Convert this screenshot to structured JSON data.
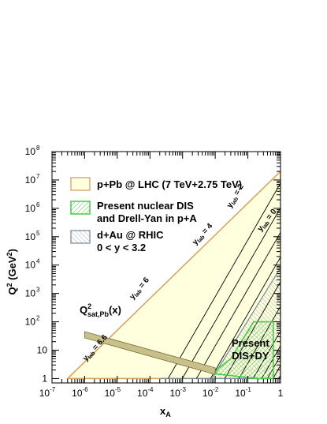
{
  "chart_data": {
    "type": "area",
    "xscale": "log",
    "yscale": "log",
    "xlim": [
      1e-07,
      1
    ],
    "ylim": [
      0.7,
      100000000.0
    ],
    "xlabel": {
      "main": "x",
      "sub": "A"
    },
    "ylabel": {
      "main": "Q",
      "sup": "2",
      "unit": " (GeV",
      "unitsup": "2",
      "close": ")"
    },
    "xticks": [
      {
        "value": 1e-07,
        "base": "10",
        "exp": "-7"
      },
      {
        "value": 1e-06,
        "base": "10",
        "exp": "-6"
      },
      {
        "value": 1e-05,
        "base": "10",
        "exp": "-5"
      },
      {
        "value": 0.0001,
        "base": "10",
        "exp": "-4"
      },
      {
        "value": 0.001,
        "base": "10",
        "exp": "-3"
      },
      {
        "value": 0.01,
        "base": "10",
        "exp": "-2"
      },
      {
        "value": 0.1,
        "base": "10",
        "exp": "-1"
      },
      {
        "value": 1,
        "base": "1",
        "exp": ""
      }
    ],
    "yticks": [
      {
        "value": 1,
        "base": "1",
        "exp": ""
      },
      {
        "value": 10,
        "base": "10",
        "exp": ""
      },
      {
        "value": 100,
        "base": "10",
        "exp": "2"
      },
      {
        "value": 1000,
        "base": "10",
        "exp": "3"
      },
      {
        "value": 10000.0,
        "base": "10",
        "exp": "4"
      },
      {
        "value": 100000.0,
        "base": "10",
        "exp": "5"
      },
      {
        "value": 1000000.0,
        "base": "10",
        "exp": "6"
      },
      {
        "value": 10000000.0,
        "base": "10",
        "exp": "7"
      },
      {
        "value": 100000000.0,
        "base": "10",
        "exp": "8"
      }
    ],
    "legend": {
      "placement": "top-left",
      "entries": [
        {
          "label": "p+Pb @ LHC (7 TeV+2.75 TeV)",
          "fill": "#ffffdd",
          "stroke": "#d4a060",
          "hatch": false
        },
        {
          "label": "Present nuclear DIS",
          "label2": "and Drell-Yan in p+A",
          "fill": "#e8fae8",
          "stroke": "#44cc44",
          "hatch": true,
          "hatchColor": "#44cc44"
        },
        {
          "label": "d+Au @ RHIC",
          "label2": "0 < y < 3.2",
          "fill": "#ffffff",
          "stroke": "#7a90a0",
          "hatch": true,
          "hatchColor": "#7a90a0"
        }
      ]
    },
    "regions": {
      "lhc": {
        "fill": "#ffffdd",
        "stroke": "#d4a060",
        "points": [
          [
            3e-07,
            1
          ],
          [
            1,
            1
          ],
          [
            1,
            20000000.0
          ],
          [
            3e-07,
            1
          ]
        ]
      },
      "rhic": {
        "stroke": "#7a90a0",
        "hatch": "#7a90a0",
        "points": [
          [
            0.0002,
            1
          ],
          [
            1,
            1
          ],
          [
            1,
            8000
          ],
          [
            0.008,
            1
          ]
        ]
      },
      "dis_dy": {
        "stroke": "#44cc44",
        "fill": "#e8fae8",
        "hatch": "#44cc44",
        "points": [
          [
            0.008,
            1.5
          ],
          [
            0.03,
            5
          ],
          [
            0.15,
            100
          ],
          [
            0.6,
            100
          ],
          [
            0.6,
            1
          ],
          [
            0.2,
            1
          ]
        ]
      }
    },
    "rapidity_lines": {
      "y_values": [
        0,
        1,
        2,
        3,
        4,
        5,
        6,
        6.6
      ],
      "extra_lines": 6,
      "s_gev2": 7700000,
      "stroke": "#000000"
    },
    "saturation_band": {
      "fill": "#c8c08a",
      "stroke": "#7a7040",
      "upper": [
        [
          1e-06,
          45
        ],
        [
          0.01,
          2.4
        ]
      ],
      "lower": [
        [
          1e-06,
          27
        ],
        [
          0.01,
          1.4
        ]
      ]
    },
    "annotations": [
      {
        "id": "ylab-0",
        "prefix": "y",
        "sub": "lab",
        "suffix": " = 0",
        "x": 0.25,
        "y": 150000.0,
        "angle": -52
      },
      {
        "id": "ylab-2",
        "prefix": "y",
        "sub": "lab",
        "suffix": " = 2",
        "x": 0.03,
        "y": 1000000.0,
        "angle": -60
      },
      {
        "id": "ylab-4",
        "prefix": "y",
        "sub": "lab",
        "suffix": " = 4",
        "x": 0.0025,
        "y": 50000.0,
        "angle": -48
      },
      {
        "id": "ylab-6",
        "prefix": "y",
        "sub": "lab",
        "suffix": " = 6",
        "x": 3e-05,
        "y": 600,
        "angle": -50
      },
      {
        "id": "ylab-6-6",
        "prefix": "y",
        "sub": "lab",
        "suffix": " = 6.6",
        "x": 1.1e-06,
        "y": 4,
        "angle": -48
      }
    ],
    "qsat_label": {
      "main": "Q",
      "sup": "2",
      "sub": "sat,Pb",
      "rest": "(x)",
      "x": 7e-07,
      "y": 200
    },
    "present_label": {
      "line1": "Present",
      "line2": "DIS+DY",
      "x": 0.12,
      "y": 8
    }
  }
}
